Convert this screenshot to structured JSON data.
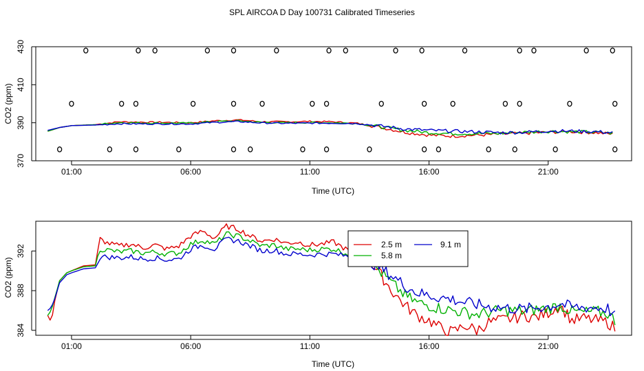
{
  "title": "SPL AIRCOA D  Day 100731  Calibrated Timeseries",
  "colors": {
    "c2_5": "#dd0000",
    "c5_8": "#00b000",
    "c9_1": "#0000cc",
    "axis": "#000000"
  },
  "chart_data": [
    {
      "type": "line",
      "panel": "top",
      "xlabel": "Time (UTC)",
      "ylabel": "CO2 (ppm)",
      "ylim": [
        370,
        430
      ],
      "yticks": [
        370,
        390,
        410,
        430
      ],
      "xlim_hours": [
        -0.5,
        24.5
      ],
      "xticks": [
        {
          "h": 1,
          "label": "01:00"
        },
        {
          "h": 6,
          "label": "06:00"
        },
        {
          "h": 11,
          "label": "11:00"
        },
        {
          "h": 16,
          "label": "16:00"
        },
        {
          "h": 21,
          "label": "21:00"
        }
      ],
      "series": [
        {
          "name": "2.5 m",
          "color": "#dd0000",
          "x": [
            0,
            0.5,
            1,
            2,
            3,
            4,
            5,
            6,
            7,
            8,
            9,
            10,
            11,
            12,
            13,
            14,
            15,
            16,
            17,
            18,
            19,
            20,
            21,
            22,
            23,
            23.7
          ],
          "values": [
            385.5,
            387.5,
            388.5,
            389,
            390.5,
            390.3,
            390.2,
            390,
            391,
            391.5,
            390.5,
            390.5,
            390.7,
            390.5,
            389.7,
            387.5,
            385,
            383.5,
            383,
            383.5,
            384,
            384.5,
            385,
            385.3,
            384.8,
            384
          ]
        },
        {
          "name": "5.8 m",
          "color": "#00b000",
          "x": [
            0,
            0.5,
            1,
            2,
            3,
            4,
            5,
            6,
            7,
            8,
            9,
            10,
            11,
            12,
            13,
            14,
            15,
            16,
            17,
            18,
            19,
            20,
            21,
            22,
            23,
            23.7
          ],
          "values": [
            385.5,
            387.5,
            388.5,
            389,
            390.1,
            389.9,
            389.8,
            389.8,
            390.6,
            391,
            390.2,
            390,
            390.1,
            390,
            389.6,
            387.8,
            386,
            384.8,
            384.3,
            384.3,
            384.4,
            385,
            385.5,
            385.3,
            385,
            384.5
          ]
        },
        {
          "name": "9.1 m",
          "color": "#0000cc",
          "x": [
            0,
            0.5,
            1,
            2,
            3,
            4,
            5,
            6,
            7,
            8,
            9,
            10,
            11,
            12,
            13,
            14,
            15,
            16,
            17,
            18,
            19,
            20,
            21,
            22,
            23,
            23.7
          ],
          "values": [
            386,
            387.5,
            388.5,
            388.8,
            389.5,
            389.4,
            389.4,
            389.4,
            390.2,
            390.6,
            389.9,
            389.7,
            389.8,
            389.8,
            389.6,
            388.2,
            386.7,
            386,
            385.6,
            385.2,
            384.8,
            385,
            385.7,
            385.6,
            385.3,
            384.8
          ]
        }
      ],
      "markers": {
        "symbol": "o",
        "points": [
          [
            0.5,
            376
          ],
          [
            1,
            400
          ],
          [
            1.6,
            428
          ],
          [
            2.6,
            376
          ],
          [
            3.1,
            400
          ],
          [
            3.7,
            376
          ],
          [
            3.7,
            400
          ],
          [
            3.8,
            428
          ],
          [
            4.5,
            428
          ],
          [
            5.5,
            376
          ],
          [
            6.1,
            400
          ],
          [
            6.7,
            428
          ],
          [
            7.8,
            428
          ],
          [
            7.8,
            376
          ],
          [
            7.8,
            400
          ],
          [
            8.5,
            376
          ],
          [
            9.0,
            400
          ],
          [
            9.6,
            428
          ],
          [
            10.7,
            376
          ],
          [
            11.1,
            400
          ],
          [
            11.7,
            376
          ],
          [
            11.7,
            400
          ],
          [
            11.8,
            428
          ],
          [
            12.5,
            428
          ],
          [
            13.5,
            376
          ],
          [
            14.0,
            400
          ],
          [
            14.6,
            428
          ],
          [
            15.7,
            428
          ],
          [
            15.8,
            376
          ],
          [
            15.8,
            400
          ],
          [
            16.4,
            376
          ],
          [
            17.0,
            400
          ],
          [
            17.5,
            428
          ],
          [
            18.5,
            376
          ],
          [
            19.2,
            400
          ],
          [
            19.6,
            376
          ],
          [
            19.8,
            400
          ],
          [
            19.8,
            428
          ],
          [
            20.4,
            428
          ],
          [
            21.3,
            376
          ],
          [
            21.9,
            400
          ],
          [
            22.6,
            428
          ],
          [
            23.7,
            428
          ],
          [
            23.8,
            400
          ],
          [
            23.8,
            376
          ]
        ]
      }
    },
    {
      "type": "line",
      "panel": "bottom",
      "xlabel": "Time (UTC)",
      "ylabel": "CO2 (ppm)",
      "ylim": [
        383.5,
        395
      ],
      "yticks": [
        384,
        388,
        392
      ],
      "xlim_hours": [
        -0.5,
        24.5
      ],
      "xticks": [
        {
          "h": 1,
          "label": "01:00"
        },
        {
          "h": 6,
          "label": "06:00"
        },
        {
          "h": 11,
          "label": "11:00"
        },
        {
          "h": 16,
          "label": "16:00"
        },
        {
          "h": 21,
          "label": "21:00"
        }
      ],
      "legend": {
        "location": "top-right",
        "entries": [
          "2.5 m",
          "5.8 m",
          "9.1 m"
        ]
      },
      "series": [
        {
          "name": "2.5 m",
          "color": "#dd0000",
          "x": [
            0,
            0.15,
            0.3,
            0.5,
            0.8,
            1.0,
            1.5,
            2.0,
            2.2,
            2.5,
            3,
            3.5,
            4,
            4.5,
            5,
            5.5,
            6,
            6.5,
            7,
            7.5,
            8,
            8.5,
            9,
            9.5,
            10,
            10.5,
            11,
            11.5,
            12,
            12.5,
            13,
            13.5,
            14,
            14.5,
            15,
            15.5,
            16,
            16.5,
            17,
            17.5,
            18,
            18.5,
            19,
            19.5,
            20,
            20.5,
            21,
            21.5,
            22,
            22.5,
            23,
            23.5,
            23.8
          ],
          "values": [
            385.5,
            384.8,
            387,
            389,
            389.8,
            390,
            390.5,
            390.6,
            393.2,
            392.8,
            392.5,
            392.7,
            392.3,
            392.6,
            392.2,
            392.5,
            393.5,
            394,
            393.3,
            394.5,
            394.2,
            393.5,
            393,
            393.2,
            392.8,
            392.9,
            392.6,
            392.7,
            392.9,
            392.2,
            391.5,
            391,
            389.5,
            387.8,
            386.5,
            385.5,
            385,
            384.2,
            383.8,
            384.5,
            384,
            384.8,
            385,
            385.2,
            385.5,
            385.3,
            385.8,
            386.5,
            385,
            385.2,
            385,
            384.8,
            384.2
          ]
        },
        {
          "name": "5.8 m",
          "color": "#00b000",
          "x": [
            0,
            0.15,
            0.3,
            0.5,
            0.8,
            1.0,
            1.5,
            2.0,
            2.2,
            2.5,
            3,
            3.5,
            4,
            4.5,
            5,
            5.5,
            6,
            6.5,
            7,
            7.5,
            8,
            8.5,
            9,
            9.5,
            10,
            10.5,
            11,
            11.5,
            12,
            12.5,
            13,
            13.5,
            14,
            14.5,
            15,
            15.5,
            16,
            16.5,
            17,
            17.5,
            18,
            18.5,
            19,
            19.5,
            20,
            20.5,
            21,
            21.5,
            22,
            22.5,
            23,
            23.5,
            23.8
          ],
          "values": [
            385.5,
            386,
            387.3,
            389,
            389.8,
            390,
            390.4,
            390.5,
            392.2,
            392.1,
            391.9,
            392,
            391.8,
            391.9,
            391.7,
            391.8,
            392.7,
            393.1,
            392.7,
            393.7,
            393.5,
            393,
            392.5,
            392.6,
            392.2,
            392.2,
            392.1,
            392.2,
            392.2,
            391.8,
            391.4,
            391,
            389.8,
            388.6,
            387.5,
            386.8,
            386.5,
            386.2,
            386,
            385.8,
            385.6,
            385.8,
            386,
            386,
            385.9,
            386.1,
            386.2,
            386.5,
            385.9,
            385.8,
            385.9,
            385.7,
            385
          ]
        },
        {
          "name": "9.1 m",
          "color": "#0000cc",
          "x": [
            0,
            0.15,
            0.3,
            0.5,
            0.8,
            1.0,
            1.5,
            2.0,
            2.2,
            2.5,
            3,
            3.5,
            4,
            4.5,
            5,
            5.5,
            6,
            6.5,
            7,
            7.5,
            8,
            8.5,
            9,
            9.5,
            10,
            10.5,
            11,
            11.5,
            12,
            12.5,
            13,
            13.5,
            14,
            14.5,
            15,
            15.5,
            16,
            16.5,
            17,
            17.5,
            18,
            18.5,
            19,
            19.5,
            20,
            20.5,
            21,
            21.5,
            22,
            22.5,
            23,
            23.5,
            23.8
          ],
          "values": [
            386,
            386.3,
            387.2,
            388.8,
            389.6,
            389.8,
            390.2,
            390.3,
            391.4,
            391.4,
            391.3,
            391.4,
            391.2,
            391.3,
            391.1,
            391.2,
            392.2,
            392.6,
            392.2,
            393.2,
            393,
            392.5,
            392,
            392.1,
            391.7,
            391.7,
            391.6,
            391.7,
            391.7,
            391.5,
            391.3,
            391,
            390.2,
            389.4,
            388.5,
            387.8,
            387.5,
            387.3,
            387.1,
            386.8,
            386.6,
            386.4,
            386.3,
            386.2,
            386.1,
            386.3,
            386.4,
            386.7,
            386.3,
            386.3,
            386.3,
            386.2,
            385.4
          ]
        }
      ]
    }
  ]
}
